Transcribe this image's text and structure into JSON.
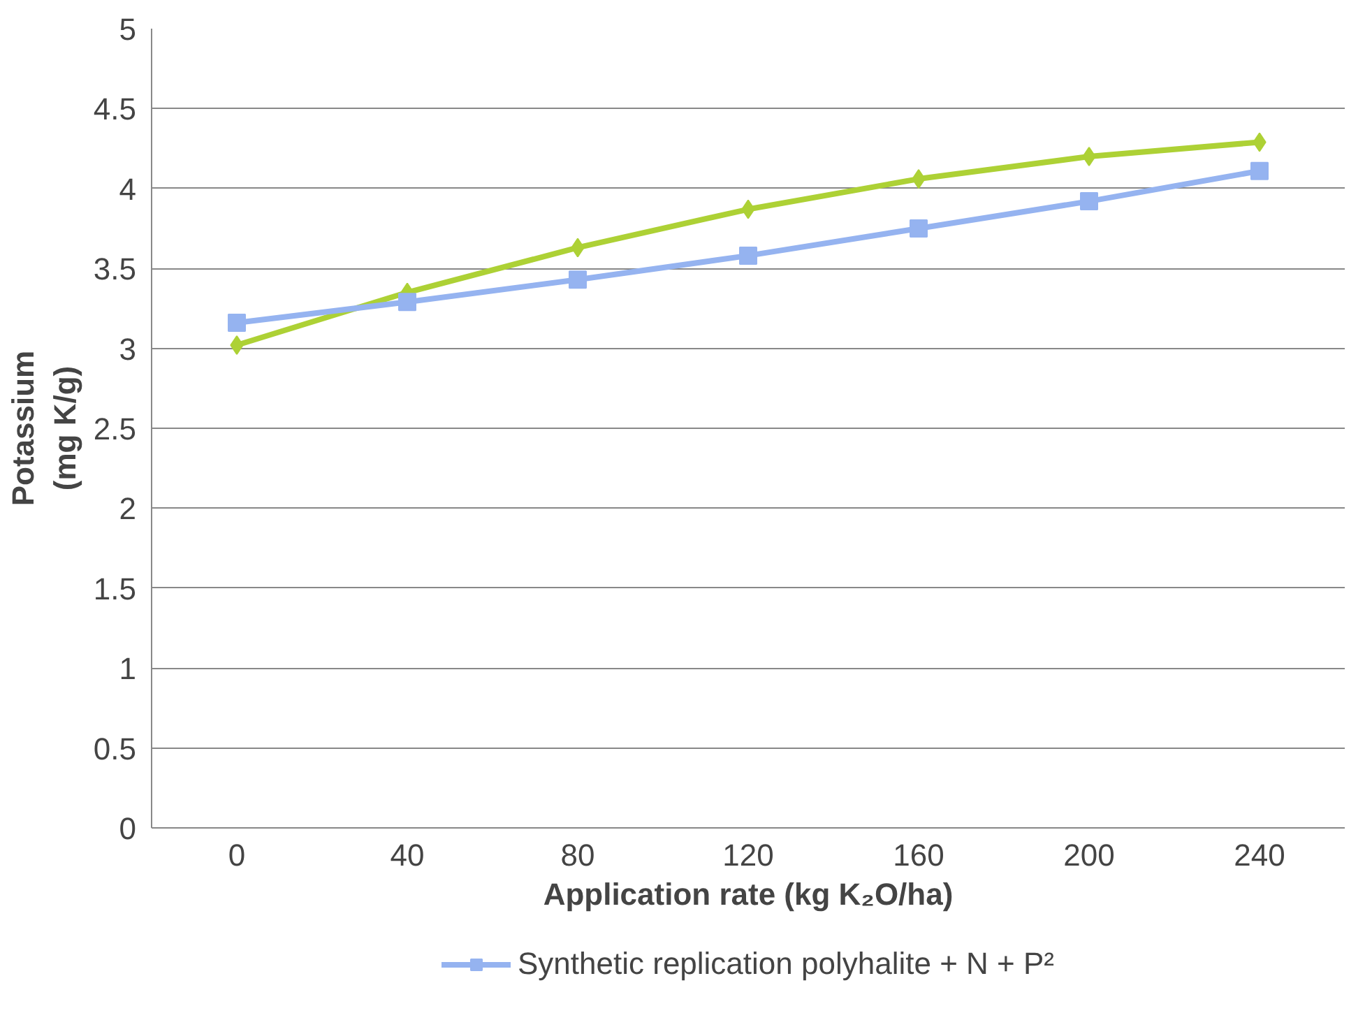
{
  "chart_data": {
    "type": "line",
    "xlabel": "Application rate (kg K₂O/ha)",
    "ylabel": "Potassium\n(mg K/g)",
    "categories": [
      "0",
      "40",
      "80",
      "120",
      "160",
      "200",
      "240"
    ],
    "series": [
      {
        "name": "Synthetic replication polyhalite + N + P²",
        "color": "#95b3f0",
        "marker": "square",
        "values": [
          3.16,
          3.29,
          3.43,
          3.58,
          3.75,
          3.92,
          4.11
        ]
      },
      {
        "color": "#add135",
        "marker": "diamond",
        "values": [
          3.02,
          3.35,
          3.63,
          3.87,
          4.06,
          4.2,
          4.29
        ]
      }
    ],
    "ylim": [
      0,
      5
    ],
    "yticks": [
      0,
      0.5,
      1,
      1.5,
      2,
      2.5,
      3,
      3.5,
      4,
      4.5,
      5
    ],
    "grid": "y",
    "legend": "bottom",
    "line_style": "solid"
  }
}
